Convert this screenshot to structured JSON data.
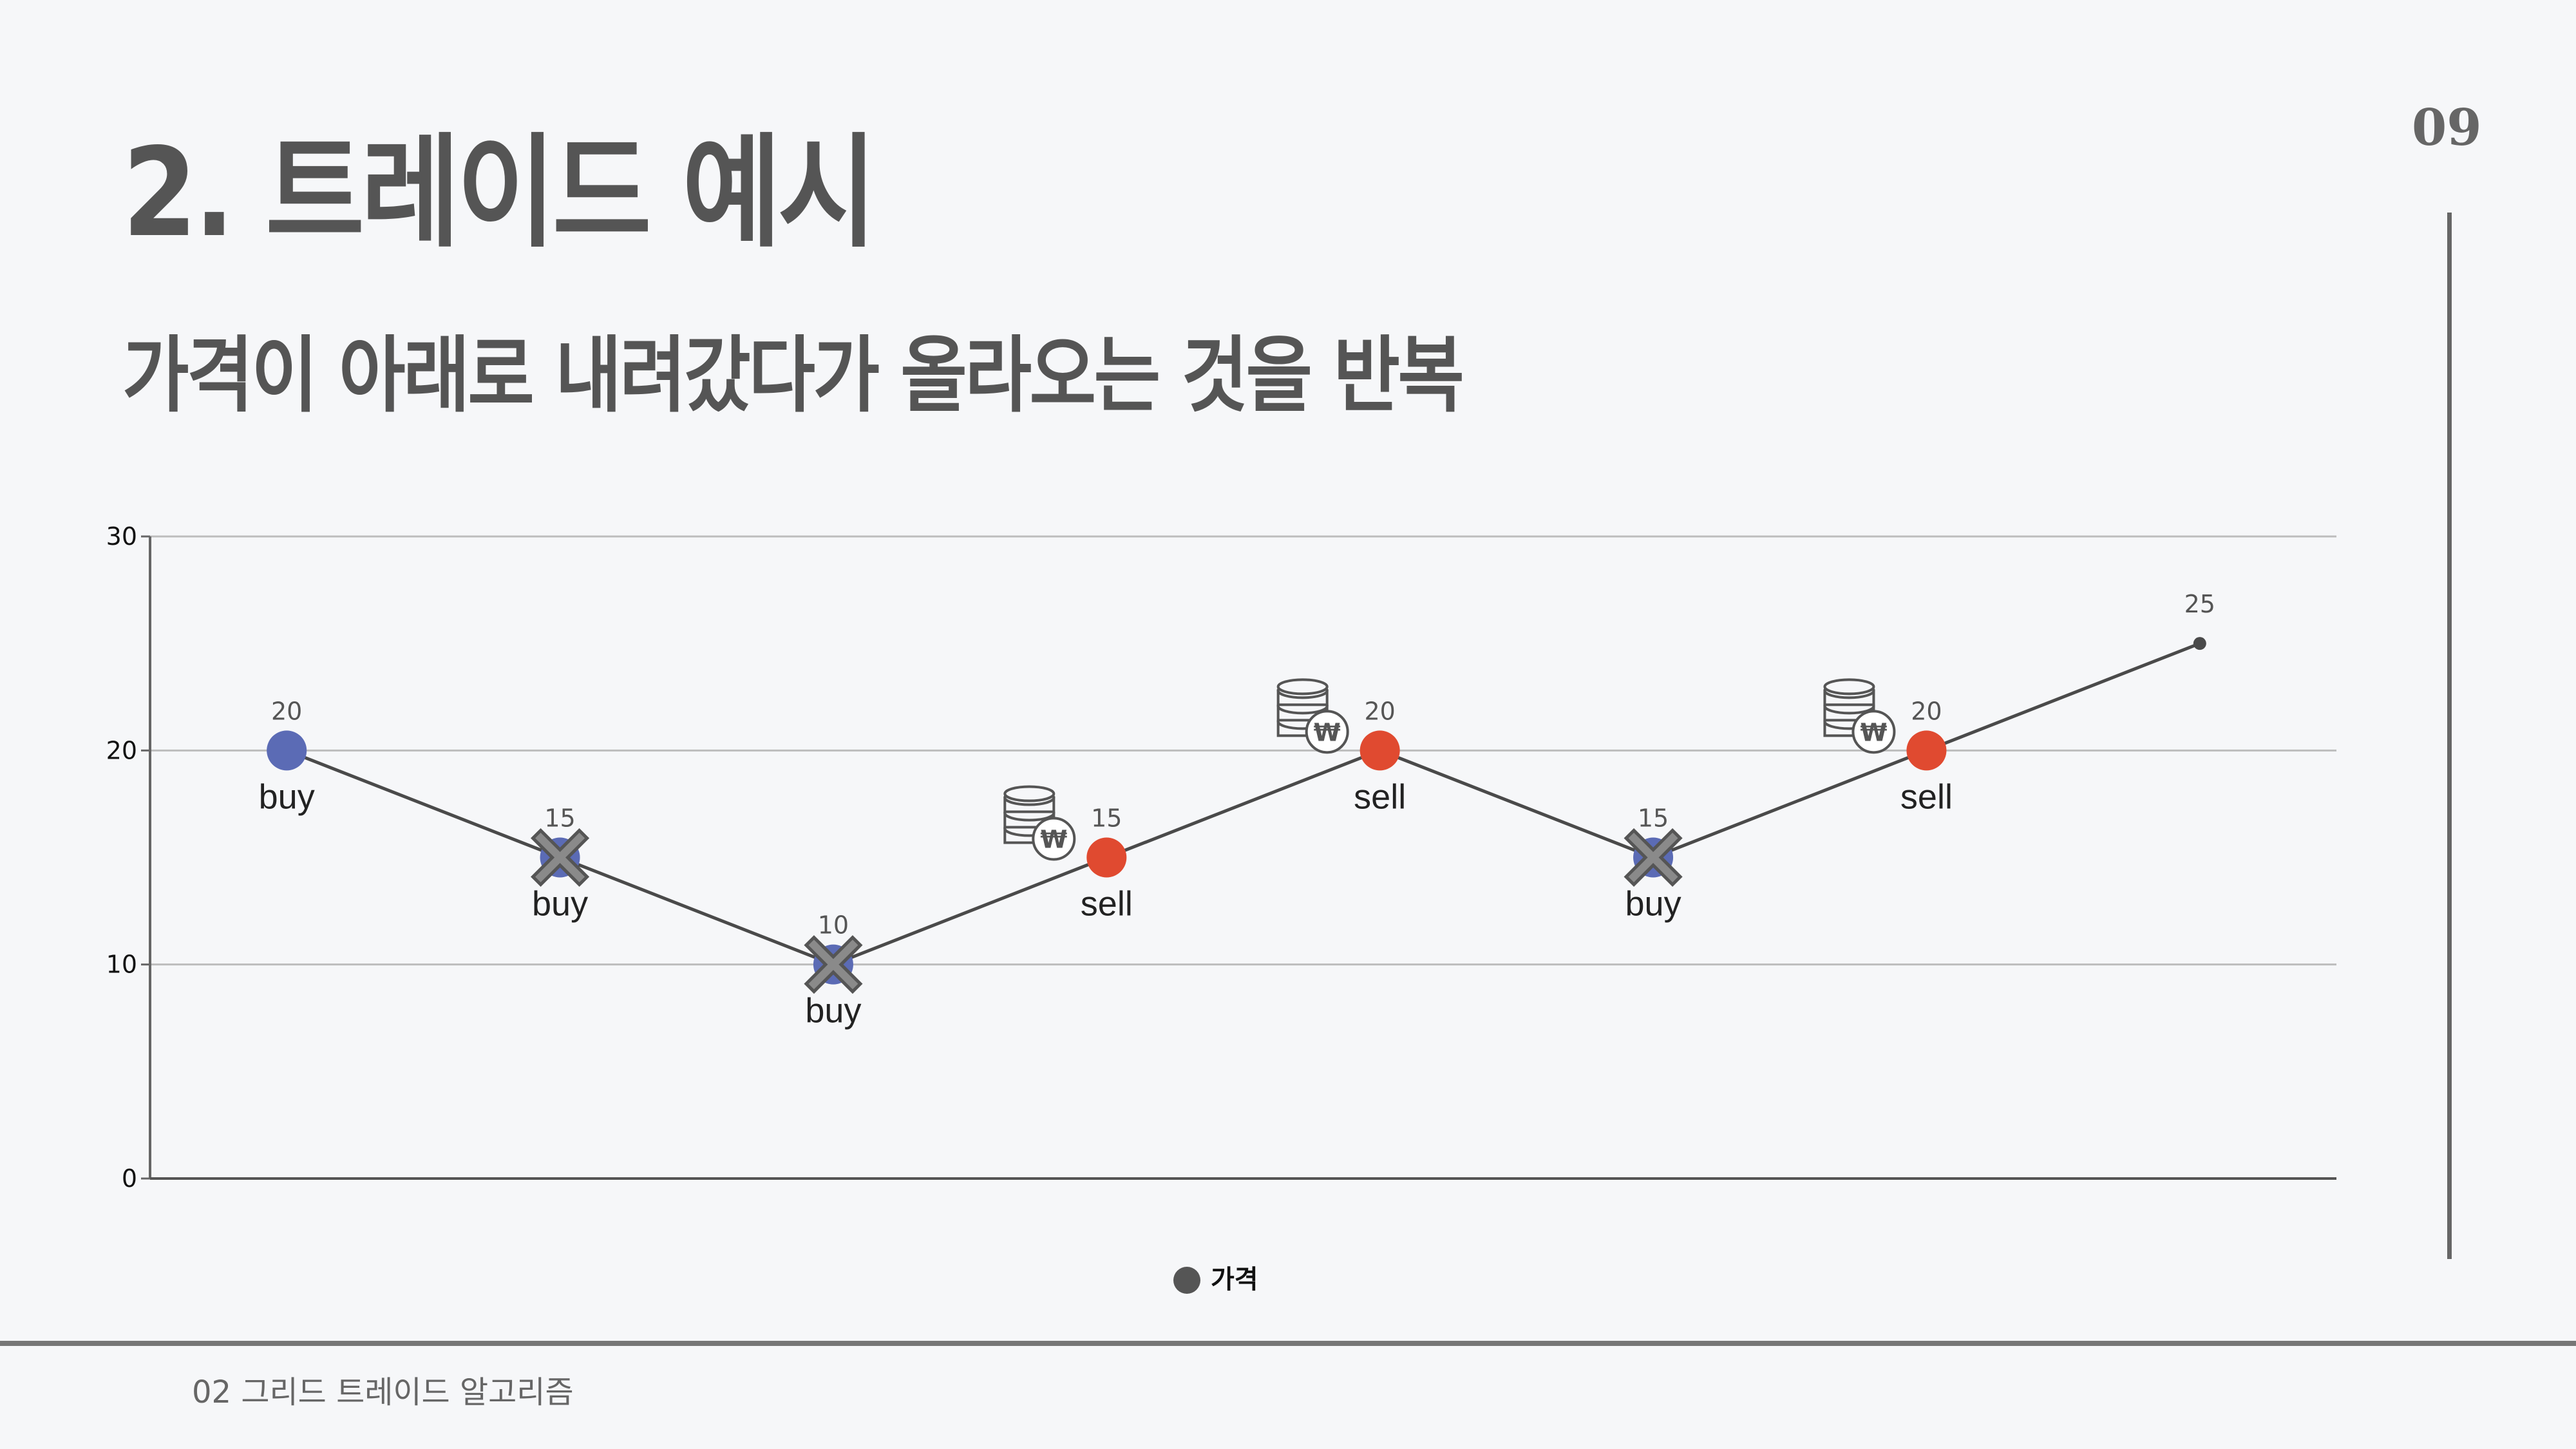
{
  "slide": {
    "title": "2. 트레이드 예시",
    "subtitle": "가격이 아래로 내려갔다가 올라오는 것을 반복",
    "page_number": "09",
    "footer": "02 그리드 트레이드 알고리즘"
  },
  "colors": {
    "line": "#4a4a4a",
    "buy": "#5b6bb5",
    "sell": "#e04a30",
    "cancel": "#8a8a8a",
    "grid": "#bdbdbd",
    "legend": "#555555"
  },
  "icons": {
    "coin": "coin-stack-won-icon",
    "cancel": "cancel-x-icon"
  },
  "chart_data": {
    "type": "line",
    "ylim": [
      0,
      30
    ],
    "yticks": [
      0,
      10,
      20,
      30
    ],
    "grid": true,
    "legend_position": "bottom-center",
    "series": [
      {
        "name": "가격",
        "values": [
          20,
          15,
          10,
          15,
          20,
          15,
          20,
          25
        ],
        "labels": [
          "20",
          "15",
          "10",
          "15",
          "20",
          "15",
          "20",
          "25"
        ],
        "actions": [
          "buy",
          "buy",
          "buy",
          "sell",
          "sell",
          "buy",
          "sell",
          ""
        ],
        "marker": [
          "buy",
          "buy-cancel",
          "buy-cancel",
          "sell",
          "sell",
          "buy-cancel",
          "sell",
          "end"
        ],
        "coin_icon": [
          false,
          false,
          false,
          true,
          true,
          false,
          true,
          false
        ]
      }
    ]
  }
}
